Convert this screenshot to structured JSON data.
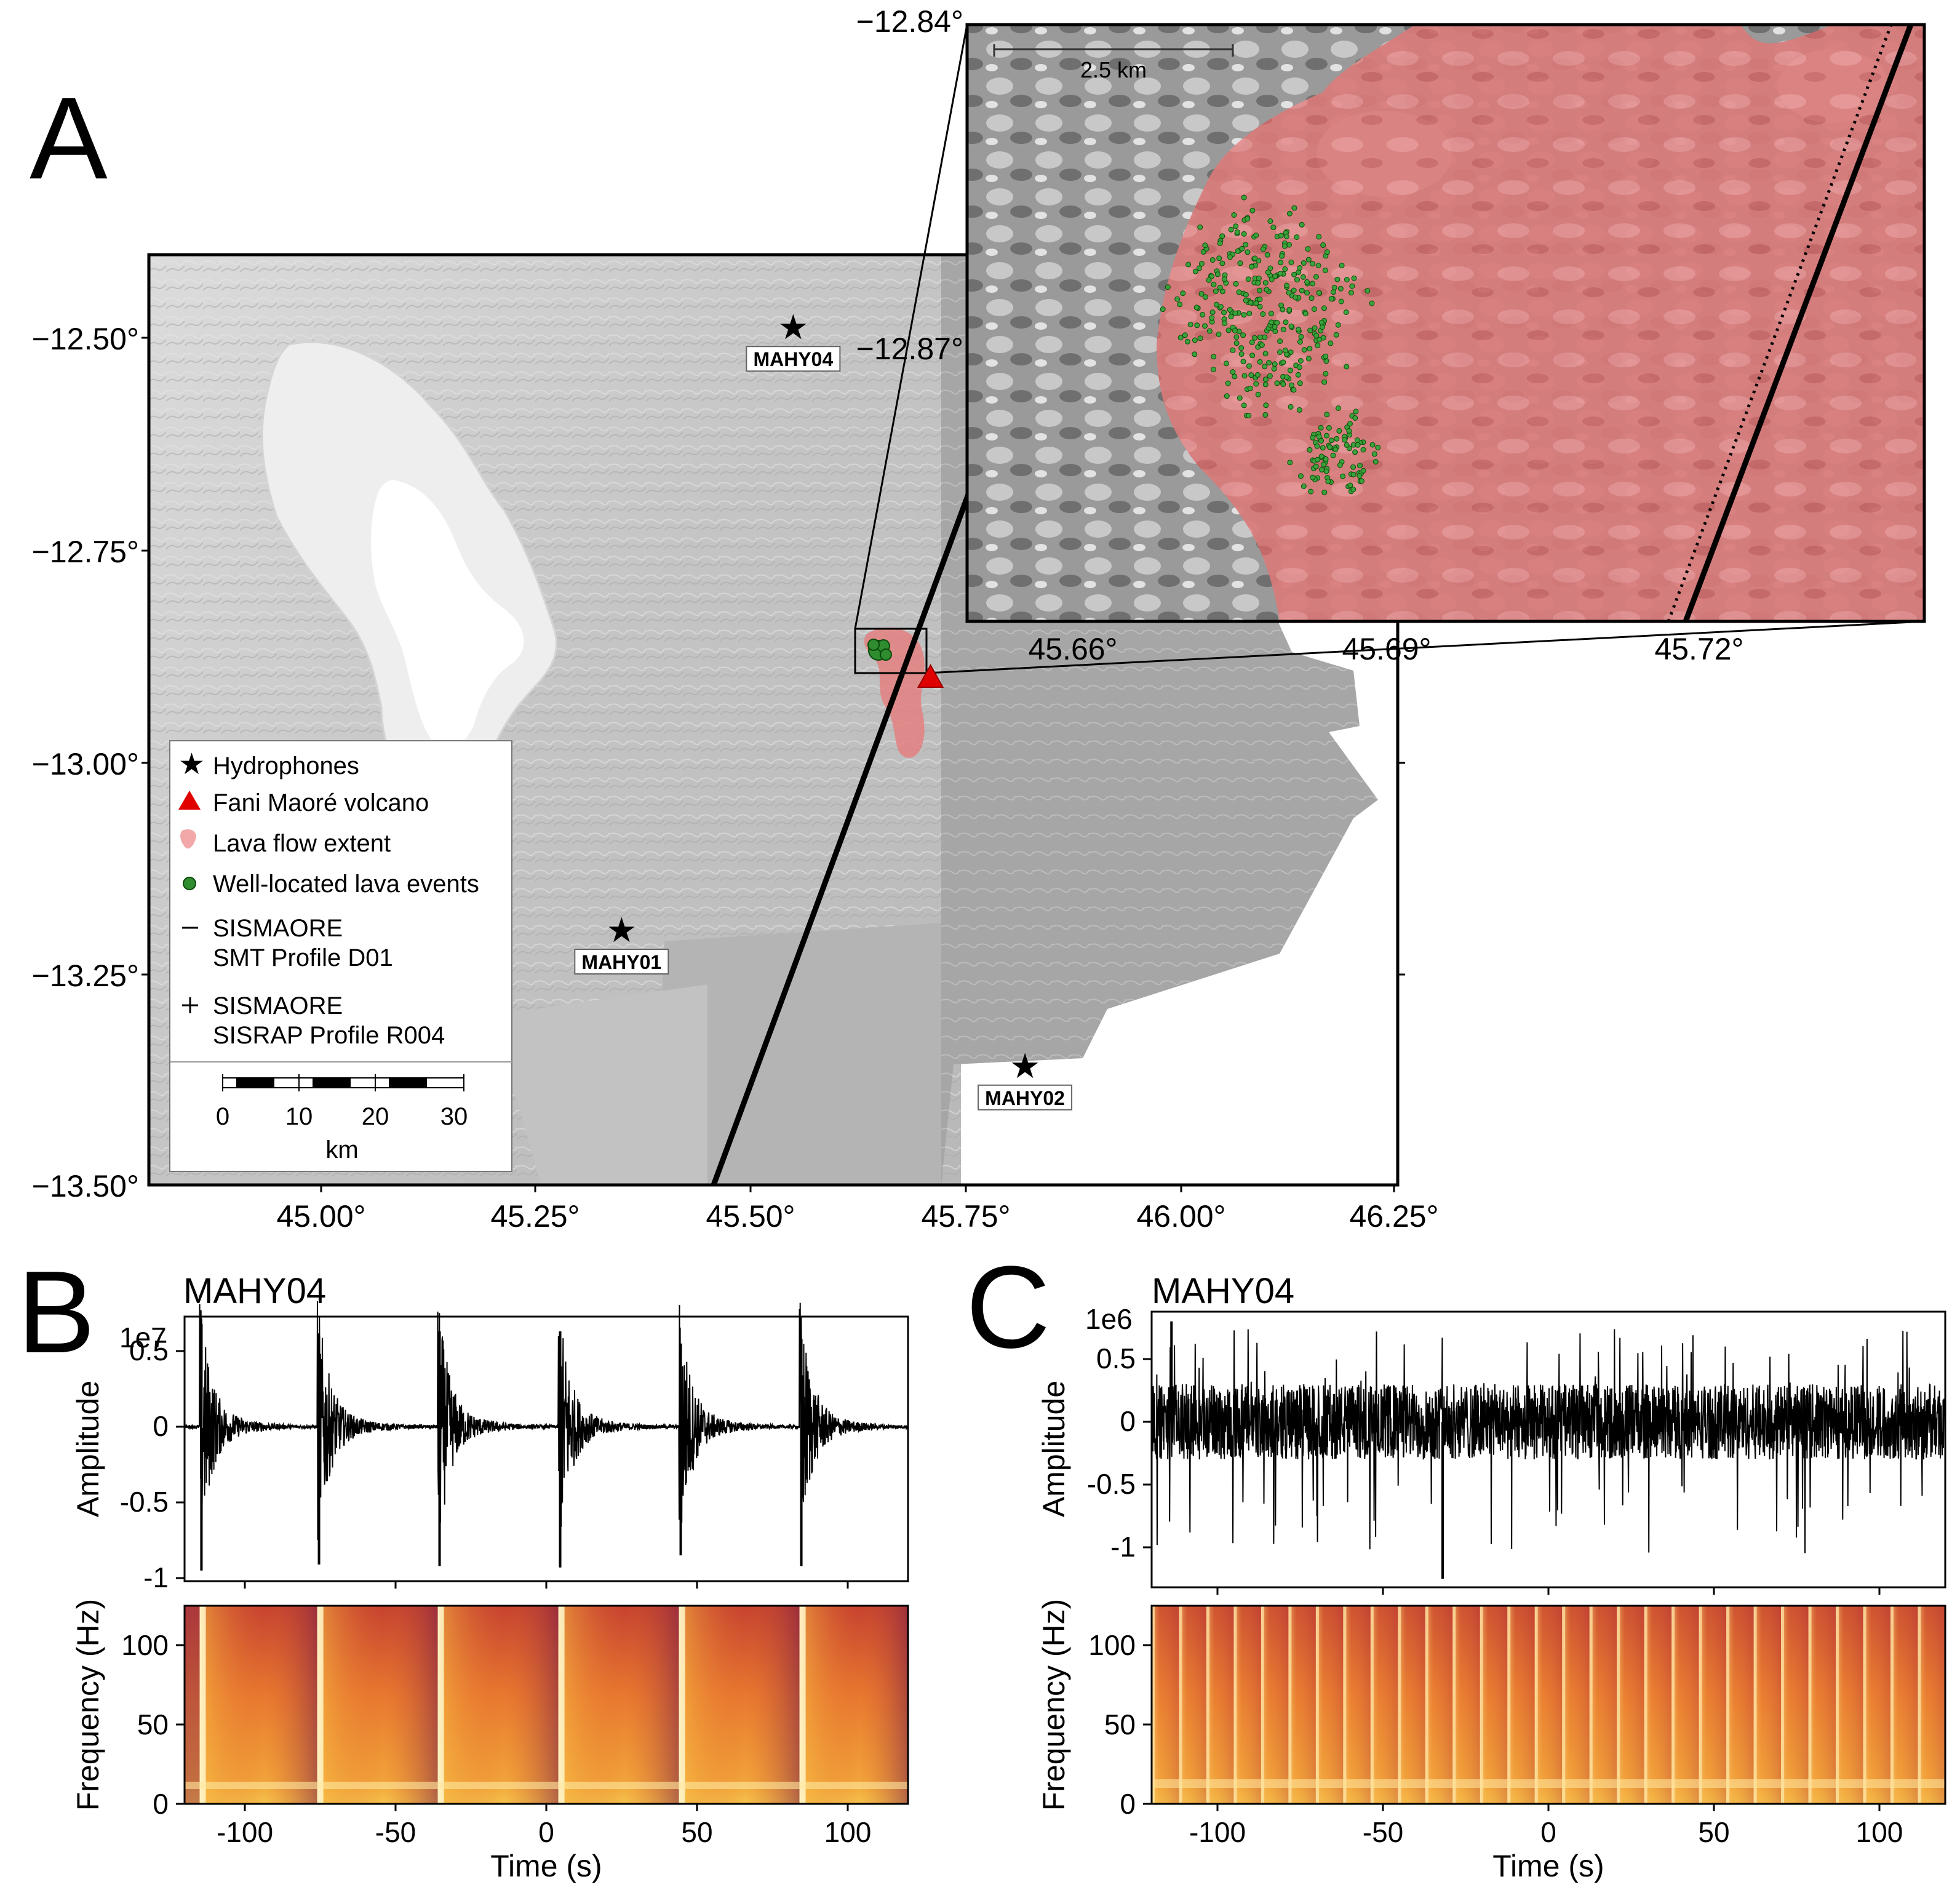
{
  "panels": {
    "a": "A",
    "b": "B",
    "c": "C"
  },
  "map": {
    "lat_ticks": [
      "−12.50°",
      "−12.75°",
      "−13.00°",
      "−13.25°",
      "−13.50°"
    ],
    "lon_ticks": [
      "45.00°",
      "45.25°",
      "45.50°",
      "45.75°",
      "46.00°",
      "46.25°"
    ],
    "stations": [
      {
        "name": "MAHY04",
        "lon": 45.55,
        "lat": -12.49
      },
      {
        "name": "MAHY01",
        "lon": 45.35,
        "lat": -13.2
      },
      {
        "name": "MAHY02",
        "lon": 45.82,
        "lat": -13.36
      }
    ],
    "volcano": {
      "lon": 45.71,
      "lat": -12.9
    },
    "legend": {
      "hydrophones": "Hydrophones",
      "volcano": "Fani Maoré volcano",
      "lava": "Lava flow extent",
      "events": "Well-located lava events",
      "smt_1": "SISMAORE",
      "smt_2": "SMT Profile D01",
      "sisrap_1": "SISMAORE",
      "sisrap_2": "SISRAP Profile R004",
      "scale_ticks": [
        "0",
        "10",
        "20",
        "30"
      ],
      "scale_unit": "km"
    },
    "colors": {
      "lava": "#e48080",
      "events": "#2f8c2f",
      "volcano": "#e00000"
    }
  },
  "inset": {
    "lat_ticks": [
      "−12.84°",
      "−12.87°"
    ],
    "lon_ticks": [
      "45.66°",
      "45.69°",
      "45.72°"
    ],
    "scale_label": "2.5 km"
  },
  "chart_data": [
    {
      "type": "line",
      "panel": "B",
      "title": "MAHY04",
      "ylabel": "Amplitude",
      "exponent": "1e7",
      "yticks": [
        "0.5",
        "0",
        "-0.5",
        "-1"
      ],
      "ylim": [
        -1.0,
        0.75
      ],
      "xlim": [
        -120,
        120
      ],
      "events_t": [
        -115,
        -76,
        -36,
        4,
        44,
        84
      ],
      "peaks_pos": [
        0.68,
        0.6,
        0.63,
        0.63,
        0.55,
        0.58
      ],
      "peaks_neg": [
        -0.95,
        -0.91,
        -0.92,
        -0.93,
        -0.85,
        -0.92
      ]
    },
    {
      "type": "heatmap",
      "panel": "B",
      "ylabel": "Frequency (Hz)",
      "xlabel": "Time (s)",
      "xticks": [
        "-100",
        "-50",
        "0",
        "50",
        "100"
      ],
      "yticks": [
        "0",
        "50",
        "100"
      ],
      "xlim": [
        -120,
        120
      ],
      "ylim": [
        0,
        125
      ]
    },
    {
      "type": "line",
      "panel": "C",
      "title": "MAHY04",
      "ylabel": "Amplitude",
      "exponent": "1e6",
      "yticks": [
        "0.5",
        "0",
        "-0.5",
        "-1"
      ],
      "ylim": [
        -1.3,
        0.9
      ],
      "xlim": [
        -120,
        120
      ],
      "peak_pos": 0.8,
      "peak_neg": -1.25
    },
    {
      "type": "heatmap",
      "panel": "C",
      "ylabel": "Frequency (Hz)",
      "xlabel": "Time (s)",
      "xticks": [
        "-100",
        "-50",
        "0",
        "50",
        "100"
      ],
      "yticks": [
        "0",
        "50",
        "100"
      ],
      "xlim": [
        -120,
        120
      ],
      "ylim": [
        0,
        125
      ]
    }
  ]
}
